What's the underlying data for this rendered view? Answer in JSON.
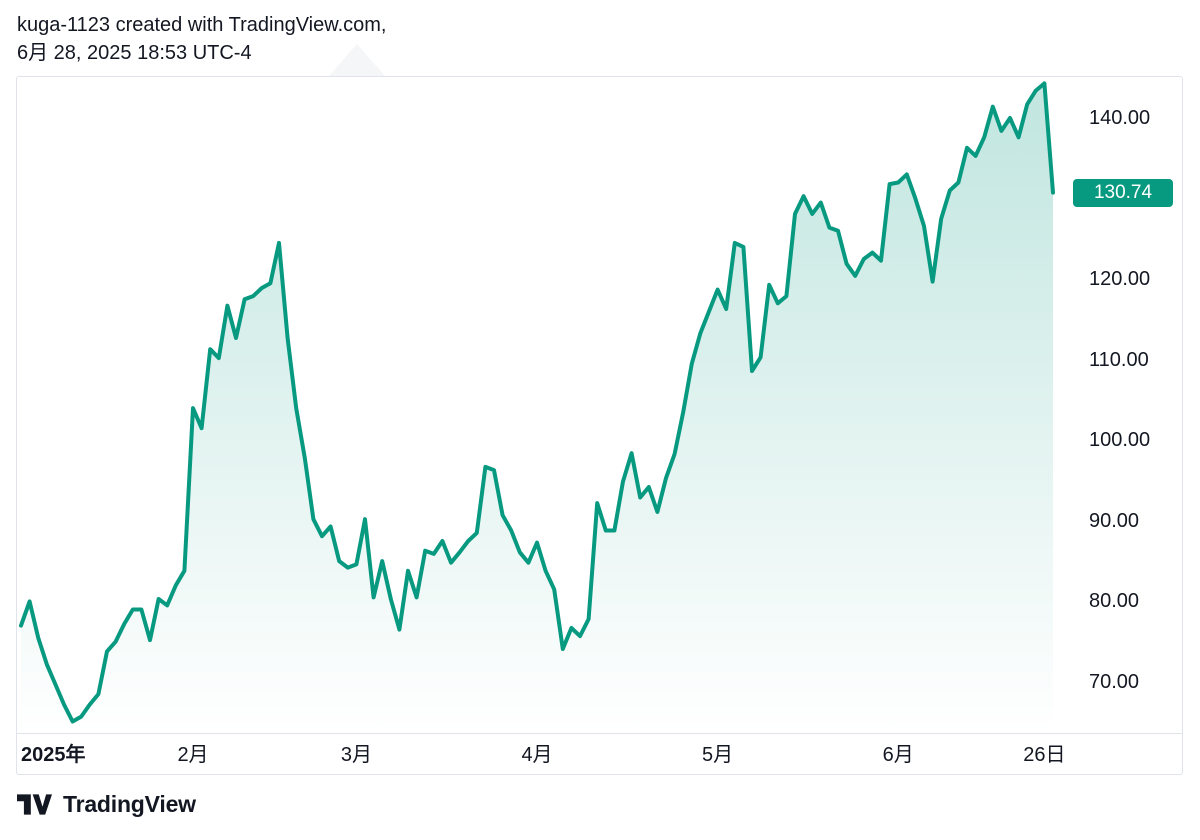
{
  "header": {
    "line1": "kuga-1123 created with TradingView.com,",
    "line2": "6月 28, 2025 18:53 UTC-4"
  },
  "footer": {
    "logo_text": "TradingView"
  },
  "colors": {
    "line": "#089981",
    "badge_bg": "#089981",
    "badge_text": "#ffffff",
    "area_top": "rgba(8,153,129,0.24)",
    "area_bottom": "rgba(8,153,129,0.0)",
    "axis_text": "#131722",
    "border": "#e1e3eb"
  },
  "price_scale": {
    "labels": [
      "140.00",
      "120.00",
      "110.00",
      "100.00",
      "90.00",
      "80.00",
      "70.00"
    ],
    "values": [
      140,
      120,
      110,
      100,
      90,
      80,
      70
    ],
    "last_price": 130.74,
    "last_price_label": "130.74"
  },
  "time_scale": {
    "ticks": [
      {
        "label": "2025年",
        "index": 0,
        "bold": true,
        "align": "left"
      },
      {
        "label": "2月",
        "index": 20
      },
      {
        "label": "3月",
        "index": 39
      },
      {
        "label": "4月",
        "index": 60
      },
      {
        "label": "5月",
        "index": 81
      },
      {
        "label": "6月",
        "index": 102
      },
      {
        "label": "26日",
        "index": 119
      }
    ]
  },
  "chart_data": {
    "type": "area",
    "title": "kuga-1123",
    "xlabel": "",
    "ylabel": "",
    "grid": false,
    "legend": false,
    "ylim": [
      63.7,
      144.6
    ],
    "y_ticks": [
      70,
      80,
      90,
      100,
      110,
      120,
      140
    ],
    "x_tick_labels": [
      "2025年",
      "2月",
      "3月",
      "4月",
      "5月",
      "6月",
      "26日"
    ],
    "last_value": 130.74,
    "x": [
      "2025-01-02",
      "2025-01-03",
      "2025-01-06",
      "2025-01-07",
      "2025-01-08",
      "2025-01-10",
      "2025-01-13",
      "2025-01-14",
      "2025-01-15",
      "2025-01-16",
      "2025-01-17",
      "2025-01-21",
      "2025-01-22",
      "2025-01-23",
      "2025-01-24",
      "2025-01-27",
      "2025-01-28",
      "2025-01-29",
      "2025-01-30",
      "2025-01-31",
      "2025-02-03",
      "2025-02-04",
      "2025-02-05",
      "2025-02-06",
      "2025-02-07",
      "2025-02-10",
      "2025-02-11",
      "2025-02-12",
      "2025-02-13",
      "2025-02-14",
      "2025-02-18",
      "2025-02-19",
      "2025-02-20",
      "2025-02-21",
      "2025-02-24",
      "2025-02-25",
      "2025-02-26",
      "2025-02-27",
      "2025-02-28",
      "2025-03-03",
      "2025-03-04",
      "2025-03-05",
      "2025-03-06",
      "2025-03-07",
      "2025-03-10",
      "2025-03-11",
      "2025-03-12",
      "2025-03-13",
      "2025-03-14",
      "2025-03-17",
      "2025-03-18",
      "2025-03-19",
      "2025-03-20",
      "2025-03-21",
      "2025-03-24",
      "2025-03-25",
      "2025-03-26",
      "2025-03-27",
      "2025-03-28",
      "2025-03-31",
      "2025-04-01",
      "2025-04-02",
      "2025-04-03",
      "2025-04-04",
      "2025-04-07",
      "2025-04-08",
      "2025-04-09",
      "2025-04-10",
      "2025-04-11",
      "2025-04-14",
      "2025-04-15",
      "2025-04-16",
      "2025-04-17",
      "2025-04-21",
      "2025-04-22",
      "2025-04-23",
      "2025-04-24",
      "2025-04-25",
      "2025-04-28",
      "2025-04-29",
      "2025-04-30",
      "2025-05-01",
      "2025-05-02",
      "2025-05-05",
      "2025-05-06",
      "2025-05-07",
      "2025-05-08",
      "2025-05-09",
      "2025-05-12",
      "2025-05-13",
      "2025-05-14",
      "2025-05-15",
      "2025-05-16",
      "2025-05-19",
      "2025-05-20",
      "2025-05-21",
      "2025-05-22",
      "2025-05-23",
      "2025-05-27",
      "2025-05-28",
      "2025-05-29",
      "2025-05-30",
      "2025-06-02",
      "2025-06-03",
      "2025-06-04",
      "2025-06-05",
      "2025-06-06",
      "2025-06-09",
      "2025-06-10",
      "2025-06-11",
      "2025-06-12",
      "2025-06-13",
      "2025-06-16",
      "2025-06-17",
      "2025-06-18",
      "2025-06-20",
      "2025-06-23",
      "2025-06-24",
      "2025-06-25",
      "2025-06-26",
      "2025-06-27"
    ],
    "series": [
      {
        "name": "kuga-1123",
        "values": [
          77.0,
          80.0,
          75.5,
          72.2,
          69.7,
          67.2,
          65.1,
          65.7,
          67.2,
          68.5,
          73.8,
          75.0,
          77.2,
          79.0,
          79.0,
          75.2,
          80.3,
          79.5,
          82.0,
          83.8,
          104.0,
          101.5,
          111.3,
          110.2,
          116.7,
          112.7,
          117.5,
          117.9,
          118.9,
          119.5,
          124.5,
          112.7,
          104.0,
          97.8,
          90.2,
          88.1,
          89.3,
          85.0,
          84.2,
          84.6,
          90.2,
          80.5,
          85.0,
          80.3,
          76.5,
          83.8,
          80.5,
          86.3,
          85.9,
          87.5,
          84.8,
          86.1,
          87.5,
          88.5,
          96.7,
          96.3,
          90.7,
          88.8,
          86.1,
          84.8,
          87.3,
          83.8,
          81.5,
          74.1,
          76.7,
          75.7,
          77.8,
          92.2,
          88.8,
          88.8,
          94.9,
          98.4,
          92.9,
          94.2,
          91.1,
          95.3,
          98.3,
          103.5,
          109.5,
          113.3,
          116.0,
          118.7,
          116.3,
          124.5,
          124.0,
          108.6,
          110.3,
          119.3,
          117.0,
          117.9,
          128.1,
          130.3,
          128.1,
          129.5,
          126.4,
          126.0,
          121.9,
          120.4,
          122.5,
          123.3,
          122.3,
          131.8,
          132.0,
          133.0,
          130.0,
          126.6,
          119.7,
          127.5,
          131.0,
          132.0,
          136.3,
          135.3,
          137.6,
          141.4,
          138.4,
          140.0,
          137.6,
          141.7,
          143.4,
          144.3,
          130.74
        ]
      }
    ]
  }
}
